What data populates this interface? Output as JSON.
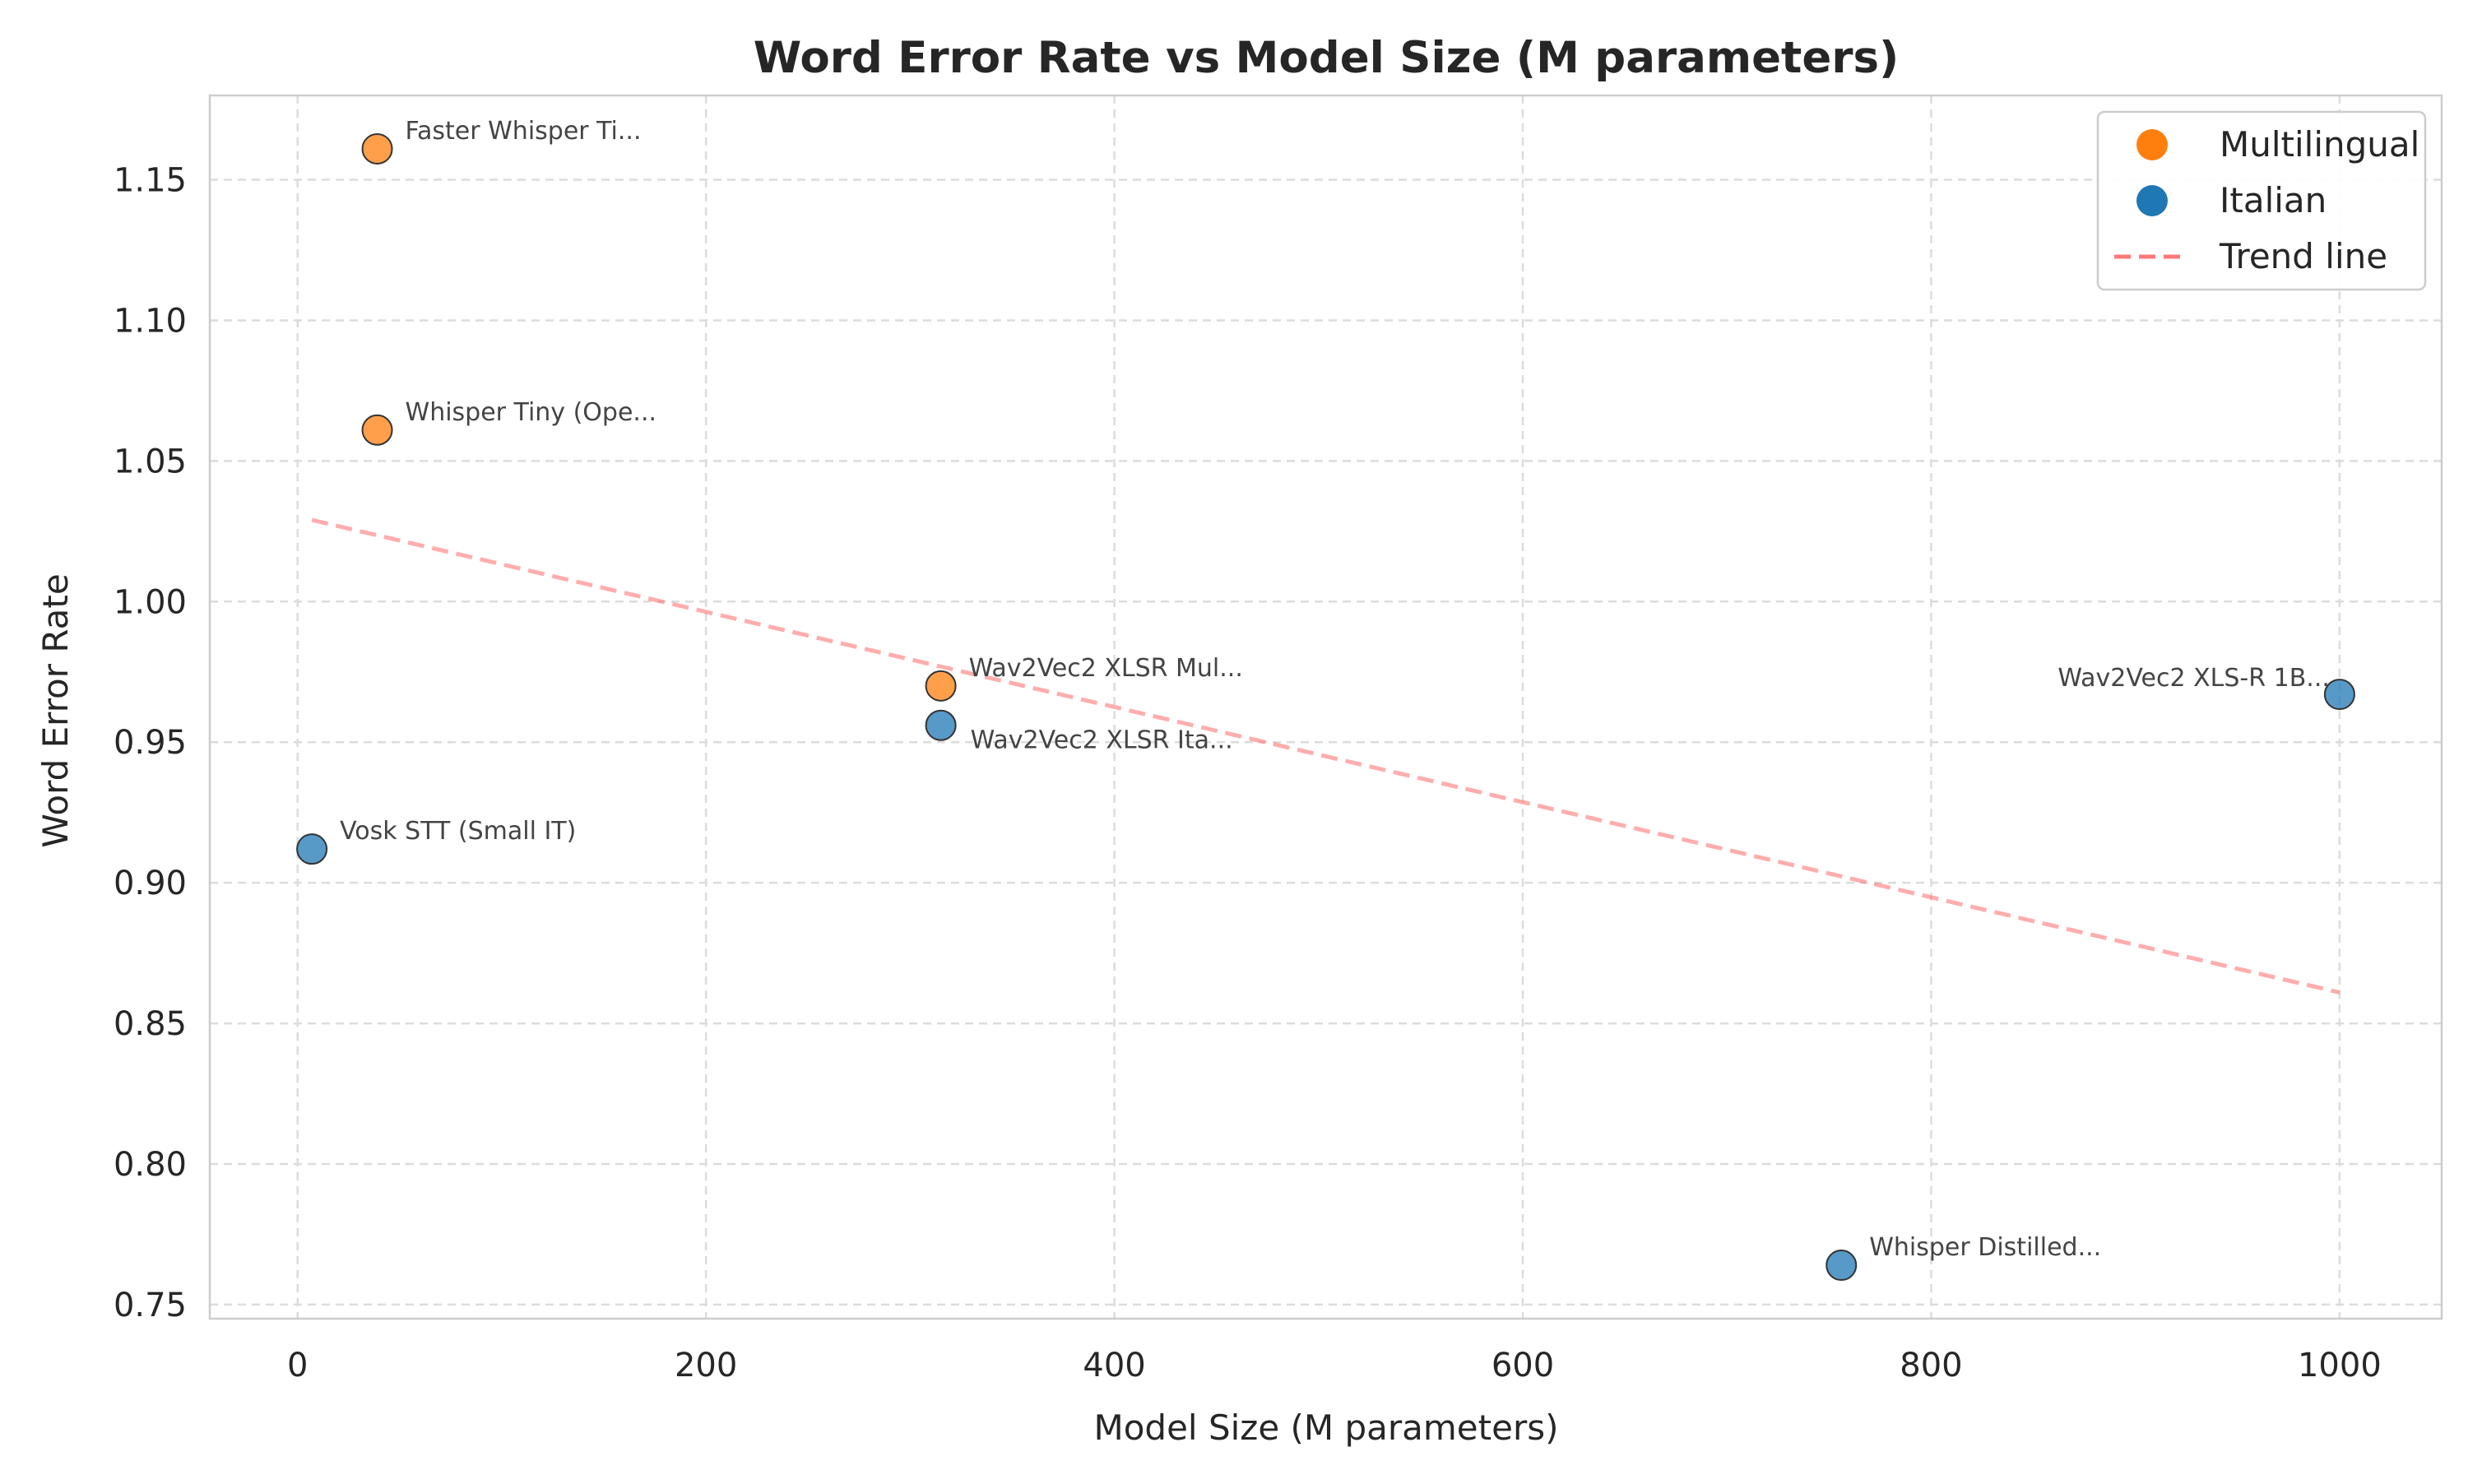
{
  "chart_data": {
    "type": "scatter",
    "title": "Word Error Rate vs Model Size (M parameters)",
    "xlabel": "Model Size (M parameters)",
    "ylabel": "Word Error Rate",
    "xlim": [
      -43,
      1050
    ],
    "ylim": [
      0.745,
      1.18
    ],
    "xticks": [
      0,
      200,
      400,
      600,
      800,
      1000
    ],
    "yticks": [
      0.75,
      0.8,
      0.85,
      0.9,
      0.95,
      1.0,
      1.05,
      1.1,
      1.15
    ],
    "grid": true,
    "legend_position": "top-right",
    "series": [
      {
        "name": "Multilingual",
        "color": "#ff7f0e",
        "points": [
          {
            "x": 39,
            "y": 1.161,
            "label": "Faster Whisper Ti..."
          },
          {
            "x": 39,
            "y": 1.061,
            "label": "Whisper Tiny (Ope..."
          },
          {
            "x": 315,
            "y": 0.97,
            "label": "Wav2Vec2 XLSR Mul..."
          }
        ]
      },
      {
        "name": "Italian",
        "color": "#1f77b4",
        "points": [
          {
            "x": 315,
            "y": 0.956,
            "label": "Wav2Vec2 XLSR Ita..."
          },
          {
            "x": 1000,
            "y": 0.967,
            "label": "Wav2Vec2 XLS-R 1B..."
          },
          {
            "x": 7,
            "y": 0.912,
            "label": "Vosk STT (Small IT)"
          },
          {
            "x": 756,
            "y": 0.764,
            "label": "Whisper Distilled..."
          }
        ]
      }
    ],
    "trend_line": {
      "name": "Trend line",
      "color": "#ff6b6b",
      "style": "dashed",
      "x": [
        7,
        1000
      ],
      "y": [
        1.029,
        0.861
      ]
    }
  }
}
